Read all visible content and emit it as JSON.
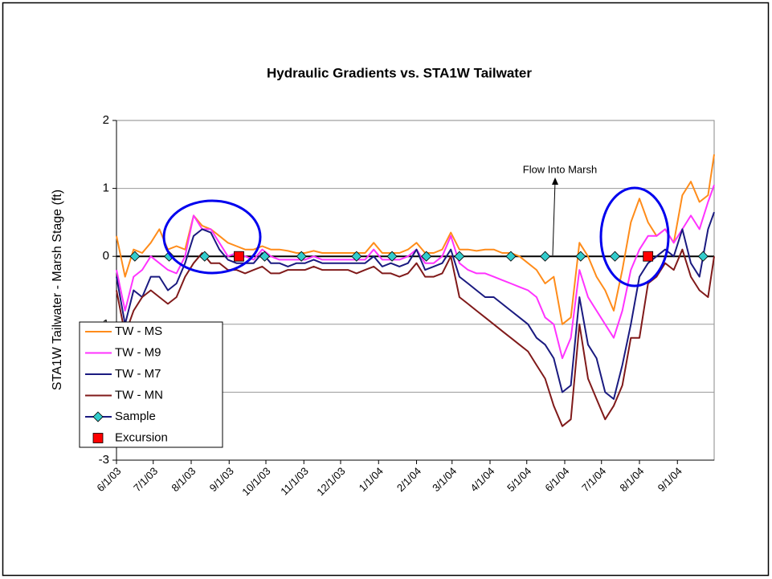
{
  "chart_data": {
    "type": "line",
    "title": "Hydraulic Gradients vs. STA1W Tailwater",
    "y_label": "STA1W Tailwater - Marsh Stage (ft)",
    "annotation": "Flow Into Marsh",
    "xlim": [
      "6/1/03",
      "10/1/04"
    ],
    "xticks": [
      "6/1/03",
      "7/1/03",
      "8/1/03",
      "9/1/03",
      "10/1/03",
      "11/1/03",
      "12/1/03",
      "1/1/04",
      "2/1/04",
      "3/1/04",
      "4/1/04",
      "5/1/04",
      "6/1/04",
      "7/1/04",
      "8/1/04",
      "9/1/04"
    ],
    "ylim": [
      -3,
      2
    ],
    "yticks": [
      -3,
      -2,
      -1,
      0,
      1,
      2
    ],
    "grid": true,
    "zero_line": true,
    "legend": "lower left",
    "x": [
      "6/1/03",
      "6/8/03",
      "6/15/03",
      "6/22/03",
      "6/29/03",
      "7/6/03",
      "7/13/03",
      "7/20/03",
      "7/27/03",
      "8/3/03",
      "8/10/03",
      "8/17/03",
      "8/24/03",
      "8/31/03",
      "9/7/03",
      "9/14/03",
      "9/21/03",
      "9/28/03",
      "10/5/03",
      "10/12/03",
      "10/19/03",
      "10/26/03",
      "11/2/03",
      "11/9/03",
      "11/16/03",
      "11/23/03",
      "11/30/03",
      "12/7/03",
      "12/14/03",
      "12/21/03",
      "12/28/03",
      "1/4/04",
      "1/11/04",
      "1/18/04",
      "1/25/04",
      "2/1/04",
      "2/8/04",
      "2/15/04",
      "2/22/04",
      "2/29/04",
      "3/7/04",
      "3/14/04",
      "3/21/04",
      "3/28/04",
      "4/4/04",
      "4/11/04",
      "4/18/04",
      "4/25/04",
      "5/2/04",
      "5/9/04",
      "5/16/04",
      "5/23/04",
      "5/30/04",
      "6/6/04",
      "6/13/04",
      "6/20/04",
      "6/27/04",
      "7/4/04",
      "7/11/04",
      "7/18/04",
      "7/25/04",
      "8/1/04",
      "8/8/04",
      "8/15/04",
      "8/22/04",
      "8/29/04",
      "9/5/04",
      "9/12/04",
      "9/19/04",
      "9/26/04",
      "10/1/04"
    ],
    "series": [
      {
        "name": "TW - MS",
        "color": "#ff8c1a",
        "values": [
          0.3,
          -0.3,
          0.1,
          0.05,
          0.2,
          0.4,
          0.1,
          0.15,
          0.1,
          0.6,
          0.45,
          0.4,
          0.3,
          0.2,
          0.15,
          0.1,
          0.1,
          0.15,
          0.1,
          0.1,
          0.08,
          0.05,
          0.05,
          0.08,
          0.05,
          0.05,
          0.05,
          0.05,
          0.05,
          0.05,
          0.2,
          0.05,
          0.05,
          0.05,
          0.1,
          0.2,
          0.05,
          0.05,
          0.1,
          0.35,
          0.1,
          0.1,
          0.08,
          0.1,
          0.1,
          0.05,
          0.05,
          0.0,
          -0.1,
          -0.2,
          -0.4,
          -0.3,
          -1.0,
          -0.9,
          0.2,
          0.0,
          -0.3,
          -0.5,
          -0.8,
          -0.2,
          0.5,
          0.85,
          0.5,
          0.3,
          0.4,
          0.2,
          0.9,
          1.1,
          0.8,
          0.9,
          1.5
        ]
      },
      {
        "name": "TW - M9",
        "color": "#ff33ff",
        "values": [
          -0.2,
          -0.8,
          -0.3,
          -0.2,
          0.0,
          -0.1,
          -0.2,
          -0.25,
          0.0,
          0.6,
          0.4,
          0.4,
          0.2,
          0.0,
          0.05,
          0.0,
          -0.05,
          0.1,
          0.0,
          -0.05,
          -0.05,
          -0.05,
          -0.05,
          0.0,
          -0.05,
          -0.05,
          -0.05,
          -0.05,
          -0.05,
          -0.05,
          0.1,
          -0.05,
          -0.05,
          -0.05,
          0.0,
          0.1,
          -0.1,
          -0.1,
          0.0,
          0.3,
          -0.1,
          -0.2,
          -0.25,
          -0.25,
          -0.3,
          -0.35,
          -0.4,
          -0.45,
          -0.5,
          -0.6,
          -0.9,
          -1.0,
          -1.5,
          -1.2,
          -0.2,
          -0.6,
          -0.8,
          -1.0,
          -1.2,
          -0.8,
          -0.2,
          0.1,
          0.3,
          0.3,
          0.4,
          0.2,
          0.4,
          0.6,
          0.4,
          0.8,
          1.05
        ]
      },
      {
        "name": "TW - M7",
        "color": "#1a1a80",
        "values": [
          -0.3,
          -1.0,
          -0.5,
          -0.6,
          -0.3,
          -0.3,
          -0.5,
          -0.4,
          -0.1,
          0.3,
          0.4,
          0.35,
          0.1,
          -0.05,
          -0.1,
          -0.1,
          -0.1,
          0.05,
          -0.1,
          -0.1,
          -0.15,
          -0.1,
          -0.1,
          -0.05,
          -0.1,
          -0.1,
          -0.1,
          -0.1,
          -0.1,
          -0.1,
          0.0,
          -0.15,
          -0.1,
          -0.15,
          -0.1,
          0.1,
          -0.2,
          -0.15,
          -0.1,
          0.1,
          -0.3,
          -0.4,
          -0.5,
          -0.6,
          -0.6,
          -0.7,
          -0.8,
          -0.9,
          -1.0,
          -1.2,
          -1.3,
          -1.5,
          -2.0,
          -1.9,
          -0.6,
          -1.3,
          -1.5,
          -2.0,
          -2.1,
          -1.6,
          -1.0,
          -0.3,
          -0.1,
          0.0,
          0.1,
          0.0,
          0.4,
          -0.1,
          -0.3,
          0.4,
          0.65
        ]
      },
      {
        "name": "TW - MN",
        "color": "#801a1a",
        "values": [
          -0.5,
          -1.15,
          -0.8,
          -0.6,
          -0.5,
          -0.6,
          -0.7,
          -0.6,
          -0.3,
          -0.1,
          0.05,
          -0.1,
          -0.1,
          -0.2,
          -0.2,
          -0.25,
          -0.2,
          -0.15,
          -0.25,
          -0.25,
          -0.2,
          -0.2,
          -0.2,
          -0.15,
          -0.2,
          -0.2,
          -0.2,
          -0.2,
          -0.25,
          -0.2,
          -0.15,
          -0.25,
          -0.25,
          -0.3,
          -0.25,
          -0.1,
          -0.3,
          -0.3,
          -0.25,
          0.0,
          -0.6,
          -0.7,
          -0.8,
          -0.9,
          -1.0,
          -1.1,
          -1.2,
          -1.3,
          -1.4,
          -1.6,
          -1.8,
          -2.2,
          -2.5,
          -2.4,
          -1.0,
          -1.8,
          -2.1,
          -2.4,
          -2.2,
          -1.9,
          -1.2,
          -1.2,
          -0.4,
          -0.3,
          -0.1,
          -0.2,
          0.1,
          -0.3,
          -0.5,
          -0.6,
          0.0
        ]
      },
      {
        "name": "Sample",
        "color": "#33cccc",
        "marker": "diamond",
        "x": [
          "6/16/03",
          "7/14/03",
          "8/12/03",
          "9/30/03",
          "10/30/03",
          "12/14/03",
          "1/12/04",
          "2/9/04",
          "3/7/04",
          "4/18/04",
          "5/16/04",
          "6/14/04",
          "7/12/04",
          "9/22/04"
        ],
        "values": [
          0,
          0,
          0,
          0,
          0,
          0,
          0,
          0,
          0,
          0,
          0,
          0,
          0,
          0
        ]
      },
      {
        "name": "Excursion",
        "color": "#ff0000",
        "marker": "square",
        "x": [
          "9/9/03",
          "8/8/04"
        ],
        "values": [
          0,
          0
        ]
      }
    ]
  }
}
